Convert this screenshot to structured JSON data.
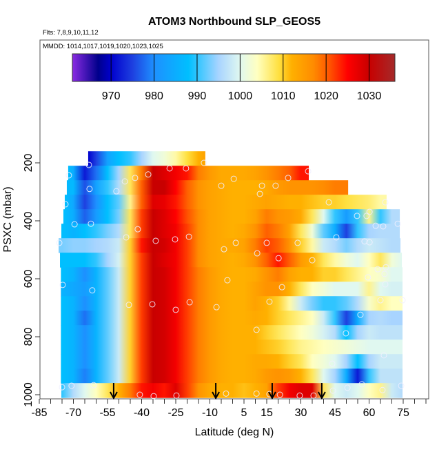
{
  "chart_data": {
    "type": "heatmap",
    "title": "ATOM3 Northbound SLP_GEOS5",
    "subtitle": "Flts: 7,8,9,10,11,12",
    "legend_caption": "MMDD: 1014,1017,1019,1020,1023,1025",
    "xlabel": "Latitude (deg N)",
    "ylabel": "PSXC (mbar)",
    "x_ticks": [
      -85,
      -70,
      -55,
      -40,
      -25,
      -10,
      5,
      15,
      30,
      45,
      60,
      75
    ],
    "y_ticks": [
      200,
      400,
      600,
      800,
      1000
    ],
    "y_inverted": true,
    "colorbar": {
      "range": [
        961,
        1036
      ],
      "ticks": [
        970,
        980,
        990,
        1000,
        1010,
        1020,
        1030
      ],
      "placement": "top",
      "stops": [
        {
          "v": 961,
          "c": "#8a2be2"
        },
        {
          "v": 967,
          "c": "#00008b"
        },
        {
          "v": 970,
          "c": "#0000cd"
        },
        {
          "v": 975,
          "c": "#1e40e0"
        },
        {
          "v": 980,
          "c": "#1e90ff"
        },
        {
          "v": 988,
          "c": "#00bfff"
        },
        {
          "v": 995,
          "c": "#a8d4ff"
        },
        {
          "v": 1000,
          "c": "#e0f8f0"
        },
        {
          "v": 1004,
          "c": "#ffffc0"
        },
        {
          "v": 1009,
          "c": "#ffe040"
        },
        {
          "v": 1012,
          "c": "#ffb000"
        },
        {
          "v": 1017,
          "c": "#ff8c00"
        },
        {
          "v": 1021,
          "c": "#ff5000"
        },
        {
          "v": 1025,
          "c": "#ff0000"
        },
        {
          "v": 1030,
          "c": "#c80000"
        },
        {
          "v": 1036,
          "c": "#a52a2a"
        }
      ]
    },
    "lat_grid": [
      -75,
      -70,
      -65,
      -60,
      -55,
      -50,
      -45,
      -40,
      -35,
      -30,
      -25,
      -20,
      -15,
      -10,
      -5,
      0,
      5,
      10,
      15,
      20,
      25,
      30,
      35,
      40,
      45,
      50,
      55,
      60,
      65,
      70,
      75
    ],
    "rows": [
      {
        "p": [
          160,
          210
        ],
        "lat": [
          -63.5,
          -12
        ],
        "slp": [
          null,
          null,
          970,
          975,
          983,
          988,
          990,
          995,
          1000,
          1002,
          1005,
          1009,
          1012,
          1014,
          null,
          null,
          null,
          null,
          null,
          null,
          null,
          null,
          null,
          null,
          null,
          null,
          null,
          null,
          null,
          null,
          null
        ]
      },
      {
        "p": [
          210,
          260
        ],
        "lat": [
          -72.3,
          33.5
        ],
        "slp": [
          988,
          985,
          972,
          978,
          988,
          995,
          1008,
          1018,
          1030,
          1028,
          1026,
          1024,
          1018,
          1015,
          1013,
          1013,
          1013,
          1014,
          1016,
          1018,
          1020,
          1024,
          1024,
          null,
          null,
          null,
          null,
          null,
          null,
          null,
          null
        ]
      },
      {
        "p": [
          260,
          310
        ],
        "lat": [
          -72.9,
          50.8
        ],
        "slp": [
          987,
          987,
          976,
          983,
          990,
          996,
          1008,
          1020,
          1030,
          1030,
          1025,
          1020,
          1016,
          1014,
          1013,
          1012,
          1012,
          1012,
          1013,
          1015,
          1016,
          1016,
          1016,
          1017,
          1018,
          1018,
          1018,
          null,
          null,
          null,
          null
        ]
      },
      {
        "p": [
          310,
          360
        ],
        "lat": [
          -73.8,
          67.7
        ],
        "slp": [
          988,
          984,
          975,
          980,
          988,
          992,
          1006,
          1020,
          1028,
          1027,
          1024,
          1020,
          1016,
          1014,
          1013,
          1012,
          1012,
          1013,
          1014,
          1013,
          1012,
          1012,
          1011,
          1010,
          1010,
          1009,
          1008,
          1007,
          1005,
          1005,
          null
        ]
      },
      {
        "p": [
          360,
          410
        ],
        "lat": [
          -74.4,
          73.5
        ],
        "slp": [
          988,
          985,
          977,
          982,
          988,
          993,
          1008,
          1022,
          1030,
          1028,
          1025,
          1021,
          1017,
          1014,
          1013,
          1012,
          1012,
          1014,
          1018,
          1016,
          1015,
          1013,
          1008,
          1000,
          990,
          982,
          990,
          1006,
          990,
          996,
          996
        ]
      },
      {
        "p": [
          410,
          460
        ],
        "lat": [
          -75.3,
          73.5
        ],
        "slp": [
          988,
          986,
          988,
          990,
          993,
          996,
          1008,
          1022,
          1030,
          1028,
          1026,
          1022,
          1017,
          1014,
          1013,
          1012,
          1013,
          1016,
          1020,
          1018,
          1014,
          1008,
          1002,
          992,
          985,
          975,
          990,
          995,
          996,
          996,
          996
        ]
      },
      {
        "p": [
          460,
          510
        ],
        "lat": [
          -76.5,
          73.8
        ],
        "slp": [
          993,
          994,
          994,
          995,
          996,
          998,
          1010,
          1024,
          1030,
          1029,
          1026,
          1022,
          1017,
          1014,
          1013,
          1013,
          1014,
          1018,
          1022,
          1020,
          1016,
          1010,
          1005,
          998,
          996,
          993,
          996,
          998,
          997,
          996,
          996
        ]
      },
      {
        "p": [
          510,
          560
        ],
        "lat": [
          -75.9,
          74.4
        ],
        "slp": [
          988,
          988,
          988,
          990,
          995,
          999,
          1010,
          1022,
          1030,
          1028,
          1026,
          1022,
          1017,
          1014,
          1013,
          1012,
          1013,
          1016,
          1020,
          1024,
          1020,
          1015,
          1012,
          1008,
          1005,
          1002,
          1000,
          1004,
          1008,
          1002,
          1000
        ]
      },
      {
        "p": [
          560,
          610
        ],
        "lat": [
          -75.5,
          74.7
        ],
        "slp": [
          988,
          986,
          980,
          986,
          992,
          998,
          1010,
          1022,
          1030,
          1029,
          1026,
          1022,
          1018,
          1015,
          1013,
          1012,
          1012,
          1013,
          1016,
          1018,
          1014,
          1012,
          1012,
          1010,
          1010,
          1008,
          1006,
          1004,
          1003,
          1000,
          1000
        ]
      },
      {
        "p": [
          610,
          660
        ],
        "lat": [
          -75.5,
          74.7
        ],
        "slp": [
          986,
          984,
          982,
          986,
          992,
          998,
          1010,
          1022,
          1030,
          1029,
          1026,
          1022,
          1018,
          1015,
          1013,
          1012,
          1012,
          1014,
          1016,
          1016,
          1012,
          1008,
          1004,
          1002,
          1000,
          1000,
          1000,
          1006,
          1000,
          999,
          999
        ]
      },
      {
        "p": [
          660,
          710
        ],
        "lat": [
          -75.5,
          74.7
        ],
        "slp": [
          988,
          986,
          980,
          986,
          992,
          998,
          1010,
          1022,
          1030,
          1029,
          1026,
          1022,
          1018,
          1015,
          1013,
          1012,
          1012,
          1014,
          1012,
          1010,
          1005,
          998,
          993,
          990,
          990,
          992,
          996,
          1003,
          1006,
          1004,
          1004
        ]
      },
      {
        "p": [
          710,
          760
        ],
        "lat": [
          -75.5,
          74.7
        ],
        "slp": [
          988,
          986,
          978,
          986,
          992,
          998,
          1010,
          1022,
          1030,
          1029,
          1026,
          1022,
          1018,
          1015,
          1013,
          1012,
          1012,
          1013,
          1012,
          1010,
          1008,
          1006,
          1004,
          998,
          990,
          975,
          985,
          995,
          996,
          995,
          995
        ]
      },
      {
        "p": [
          760,
          810
        ],
        "lat": [
          -75.5,
          74.7
        ],
        "slp": [
          988,
          986,
          980,
          986,
          992,
          998,
          1010,
          1022,
          1030,
          1029,
          1026,
          1022,
          1018,
          1015,
          1013,
          1012,
          1012,
          1012,
          1010,
          1008,
          1006,
          1004,
          1002,
          999,
          996,
          988,
          995,
          998,
          997,
          997,
          997
        ]
      },
      {
        "p": [
          810,
          860
        ],
        "lat": [
          -75.5,
          74.7
        ],
        "slp": [
          988,
          986,
          980,
          986,
          992,
          998,
          1010,
          1022,
          1030,
          1029,
          1026,
          1022,
          1018,
          1015,
          1013,
          1012,
          1012,
          1012,
          1011,
          1010,
          1008,
          1006,
          1005,
          1004,
          1003,
          1002,
          1001,
          1000,
          1000,
          1000,
          1000
        ]
      },
      {
        "p": [
          860,
          910
        ],
        "lat": [
          -75.5,
          74.7
        ],
        "slp": [
          988,
          986,
          980,
          986,
          992,
          998,
          1010,
          1022,
          1030,
          1029,
          1026,
          1022,
          1018,
          1015,
          1013,
          1012,
          1012,
          1013,
          1013,
          1012,
          1010,
          1008,
          1004,
          1002,
          1000,
          995,
          988,
          995,
          998,
          998,
          998
        ]
      },
      {
        "p": [
          910,
          960
        ],
        "lat": [
          -75.5,
          74.7
        ],
        "slp": [
          988,
          986,
          979,
          986,
          992,
          998,
          1010,
          1022,
          1030,
          1029,
          1026,
          1022,
          1018,
          1015,
          1013,
          1012,
          1012,
          1013,
          1015,
          1016,
          1015,
          1012,
          1008,
          1000,
          995,
          985,
          972,
          990,
          997,
          997,
          997
        ]
      },
      {
        "p": [
          960,
          1010
        ],
        "lat": [
          -75.3,
          74.7
        ],
        "slp": [
          990,
          996,
          1000,
          1004,
          1008,
          1012,
          1018,
          1024,
          1026,
          1024,
          1028,
          1022,
          1016,
          1013,
          1012,
          1012,
          1011,
          1012,
          1014,
          1022,
          1026,
          1028,
          1028,
          1008,
          1000,
          998,
          1000,
          1004,
          1006,
          998,
          996
        ]
      }
    ],
    "points": [
      [
        -63.2,
        207
      ],
      [
        -72.0,
        243
      ],
      [
        -27.7,
        219
      ],
      [
        -20.5,
        219
      ],
      [
        -12.6,
        200
      ],
      [
        33.2,
        229
      ],
      [
        -47.4,
        264
      ],
      [
        -42.9,
        252
      ],
      [
        -37.1,
        240
      ],
      [
        0.5,
        255
      ],
      [
        24.4,
        252
      ],
      [
        -62.9,
        290
      ],
      [
        -51.1,
        298
      ],
      [
        -5.0,
        279
      ],
      [
        12.9,
        279
      ],
      [
        18.9,
        279
      ],
      [
        12.0,
        307
      ],
      [
        -73.5,
        343
      ],
      [
        42.3,
        336
      ],
      [
        67.1,
        336
      ],
      [
        60.2,
        369
      ],
      [
        -69.5,
        412
      ],
      [
        -62.3,
        410
      ],
      [
        54.7,
        383
      ],
      [
        58.9,
        383
      ],
      [
        62.9,
        417
      ],
      [
        66.2,
        419
      ],
      [
        72.6,
        410
      ],
      [
        -41.7,
        429
      ],
      [
        -46.8,
        457
      ],
      [
        -33.8,
        469
      ],
      [
        -25.3,
        464
      ],
      [
        -19.2,
        455
      ],
      [
        45.6,
        457
      ],
      [
        -76.2,
        476
      ],
      [
        58.0,
        471
      ],
      [
        60.2,
        474
      ],
      [
        1.4,
        476
      ],
      [
        15.0,
        476
      ],
      [
        28.6,
        476
      ],
      [
        -3.8,
        498
      ],
      [
        10.8,
        512
      ],
      [
        20.2,
        529
      ],
      [
        35.0,
        536
      ],
      [
        63.8,
        567
      ],
      [
        67.4,
        560
      ],
      [
        59.5,
        595
      ],
      [
        66.8,
        583
      ],
      [
        -2.3,
        605
      ],
      [
        -74.7,
        621
      ],
      [
        -61.7,
        640
      ],
      [
        21.7,
        629
      ],
      [
        67.1,
        619
      ],
      [
        -45.6,
        690
      ],
      [
        -35.3,
        688
      ],
      [
        -25.0,
        707
      ],
      [
        -18.9,
        681
      ],
      [
        -7.1,
        698
      ],
      [
        16.2,
        679
      ],
      [
        65.0,
        674
      ],
      [
        74.7,
        674
      ],
      [
        56.2,
        724
      ],
      [
        10.5,
        776
      ],
      [
        49.8,
        788
      ],
      [
        66.5,
        864
      ],
      [
        43.8,
        893
      ],
      [
        -75.0,
        974
      ],
      [
        -70.8,
        969
      ],
      [
        -61.1,
        967
      ],
      [
        56.8,
        964
      ],
      [
        -40.8,
        1000
      ],
      [
        -34.7,
        1005
      ],
      [
        -24.7,
        1003
      ],
      [
        -2.9,
        996
      ],
      [
        10.5,
        996
      ],
      [
        16.2,
        998
      ],
      [
        20.8,
        1000
      ],
      [
        29.5,
        1003
      ],
      [
        35.6,
        1003
      ],
      [
        44.1,
        986
      ],
      [
        50.5,
        976
      ],
      [
        65.9,
        984
      ],
      [
        74.1,
        969
      ]
    ],
    "arrows_lat": [
      -52.3,
      -7.4,
      17.4,
      39.2
    ],
    "point_color": "#f0f0ff",
    "arrow_color": "#000000"
  }
}
